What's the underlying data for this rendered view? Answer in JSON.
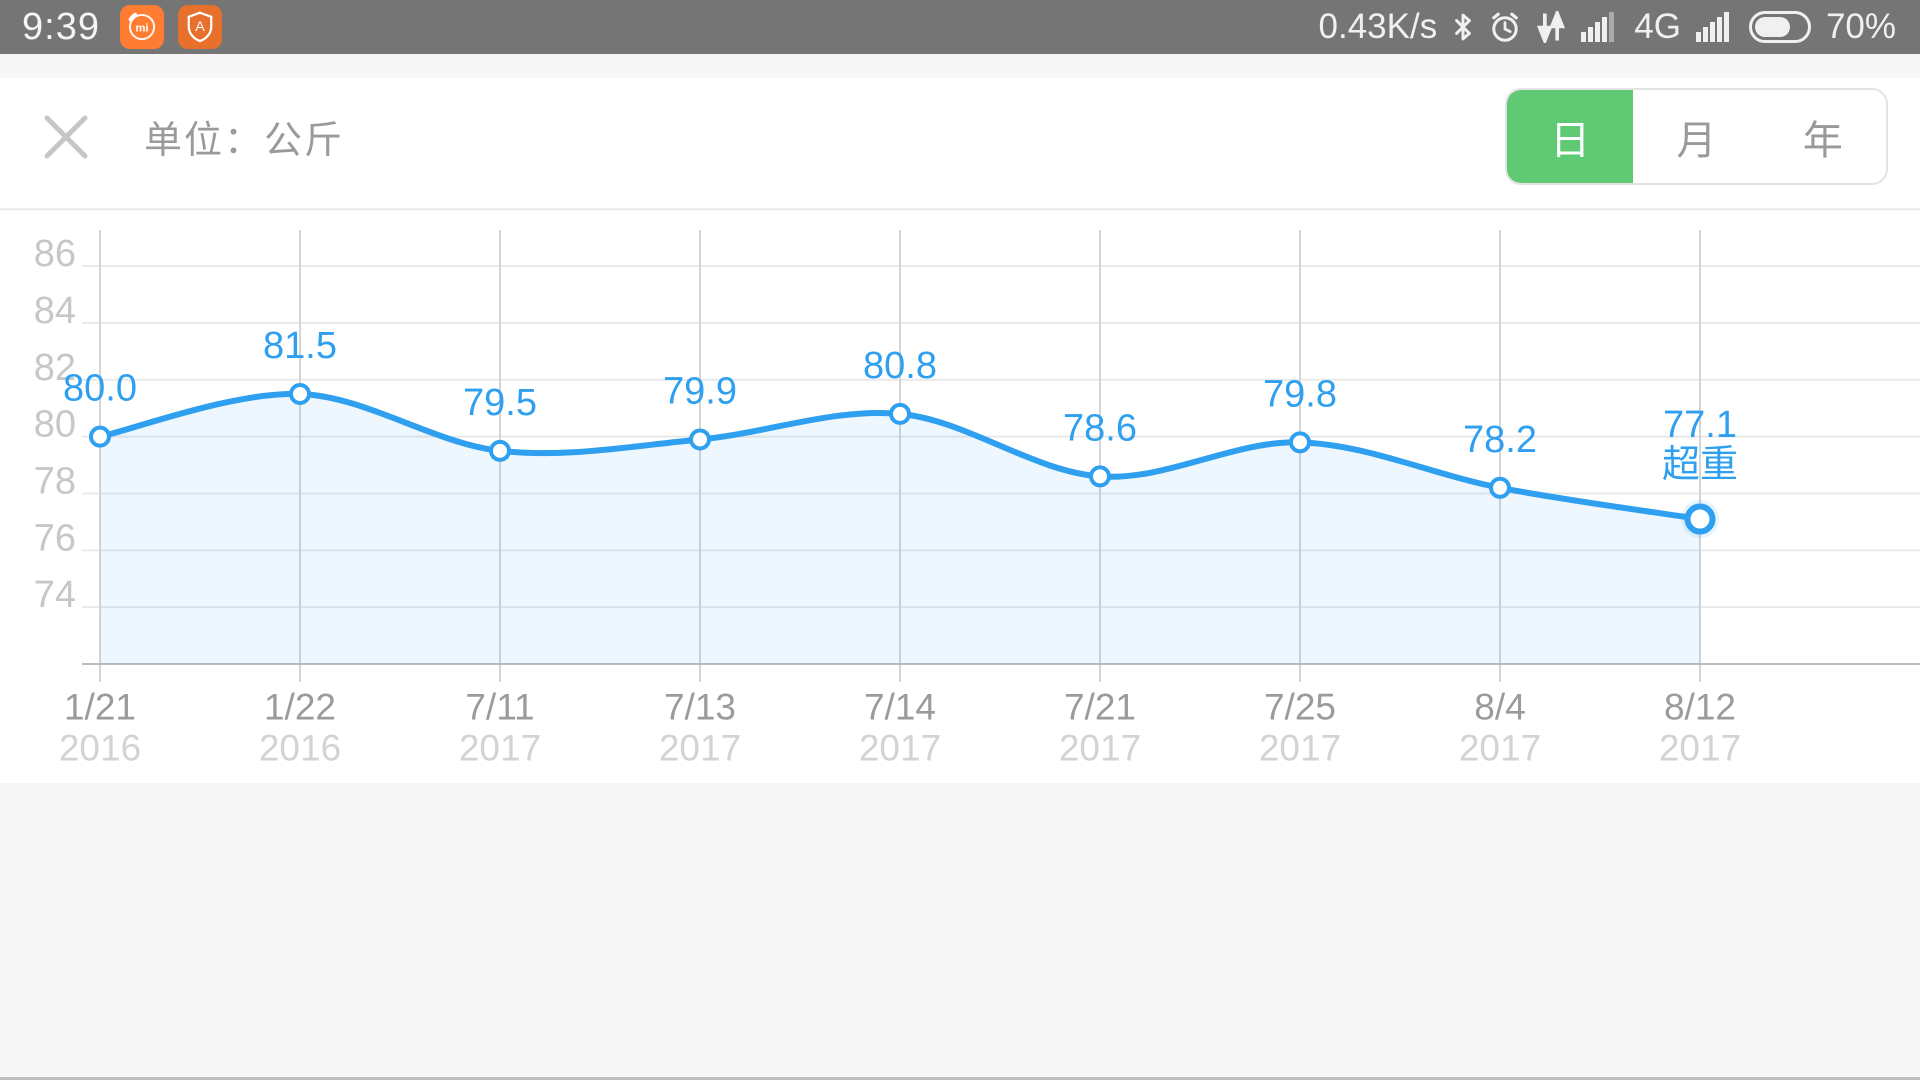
{
  "status_bar": {
    "time": "9:39",
    "net_speed": "0.43K/s",
    "network_type": "4G",
    "battery_percent": "70%",
    "battery_level": 0.7,
    "mi_app_glyph": "mi",
    "security_app_glyph": "A"
  },
  "header": {
    "unit_label": "单位：公斤",
    "tabs": [
      {
        "id": "day",
        "label": "日",
        "selected": true
      },
      {
        "id": "month",
        "label": "月",
        "selected": false
      },
      {
        "id": "year",
        "label": "年",
        "selected": false
      }
    ]
  },
  "colors": {
    "accent_blue": "#2f9ff0",
    "accent_green": "#5fc973",
    "area_fill": "rgba(47,159,240,0.08)",
    "h_grid": "#e9e9e9",
    "v_grid": "#d5d5d5",
    "axis_line": "#bdbdbd",
    "y_label": "#c7c7c7",
    "x_date_label": "#9b9b9b",
    "x_year_label": "#d3d3d3",
    "status_bar_bg": "#757575"
  },
  "chart_data": {
    "type": "line",
    "unit": "公斤",
    "categories": [
      "1/21",
      "1/22",
      "7/11",
      "7/13",
      "7/14",
      "7/21",
      "7/25",
      "8/4",
      "8/12"
    ],
    "category_years": [
      "2016",
      "2016",
      "2017",
      "2017",
      "2017",
      "2017",
      "2017",
      "2017",
      "2017"
    ],
    "values": [
      80.0,
      81.5,
      79.5,
      79.9,
      80.8,
      78.6,
      79.8,
      78.2,
      77.1
    ],
    "data_labels": [
      "80.0",
      "81.5",
      "79.5",
      "79.9",
      "80.8",
      "78.6",
      "79.8",
      "78.2",
      "77.1"
    ],
    "last_point_annotation": "超重",
    "yticks": [
      86,
      84,
      82,
      80,
      78,
      76,
      74
    ],
    "ylim": [
      72,
      88
    ],
    "grid": true,
    "legend_position": "none",
    "smooth": true,
    "area": true
  }
}
